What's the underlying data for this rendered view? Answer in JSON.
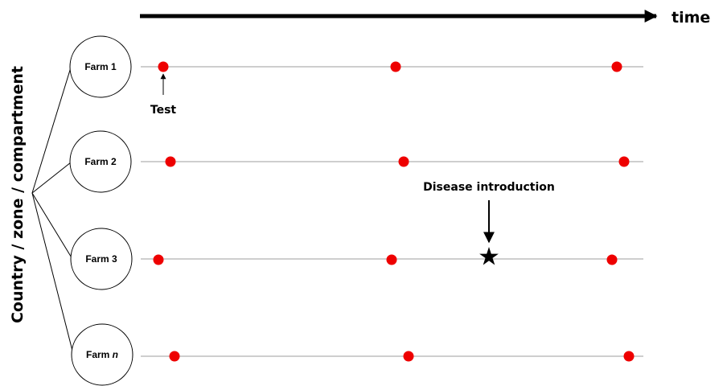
{
  "axis": {
    "time_label": "time"
  },
  "group_label": "Country / zone / compartment",
  "farms": [
    {
      "name": "Farm 1",
      "italic_suffix": ""
    },
    {
      "name": "Farm 2",
      "italic_suffix": ""
    },
    {
      "name": "Farm 3",
      "italic_suffix": ""
    },
    {
      "name": "Farm ",
      "italic_suffix": "n"
    }
  ],
  "annotations": {
    "test_label": "Test",
    "disease_label": "Disease introduction"
  },
  "colors": {
    "test_dot": "#ee0000",
    "timeline": "#b0b0b0",
    "arrow": "#000000"
  }
}
